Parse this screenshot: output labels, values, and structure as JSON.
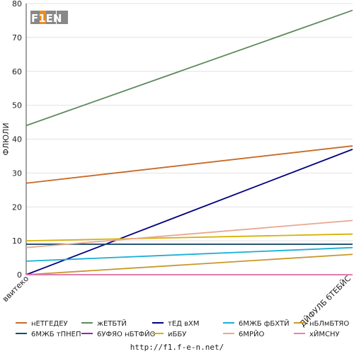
{
  "chart_data": {
    "type": "line",
    "title": "",
    "xlabel": "",
    "ylabel": "ФЛЮЛИ",
    "categories": [
      "ввитеко",
      "ДЙФУЛБ бТЕБЙС"
    ],
    "ylim": [
      0,
      80
    ],
    "yticks": [
      0,
      10,
      20,
      30,
      40,
      50,
      60,
      70,
      80
    ],
    "grid": true,
    "legend_position": "bottom",
    "series": [
      {
        "name": "нЕТГЕДЕУ",
        "color": "#c86a28",
        "values": [
          27,
          38
        ]
      },
      {
        "name": "жЕТБТЙ",
        "color": "#5d8a5d",
        "values": [
          44,
          78
        ]
      },
      {
        "name": "тЕД вХМ",
        "color": "#000080",
        "values": [
          0,
          37
        ]
      },
      {
        "name": "6МЖБ фБХТЙ",
        "color": "#1ab0d8",
        "values": [
          4,
          8
        ]
      },
      {
        "name": "нБЛмБТЯО",
        "color": "#c8982a",
        "values": [
          0,
          6
        ]
      },
      {
        "name": "6МЖБ тПНЕП",
        "color": "#1a4a6a",
        "values": [
          9,
          9
        ]
      },
      {
        "name": "6УФЯО нБТФЙО",
        "color": "#8a2aa8",
        "values": [
          0,
          0
        ]
      },
      {
        "name": "иББУ",
        "color": "#d8b000",
        "values": [
          10,
          12
        ]
      },
      {
        "name": "6МРЙО",
        "color": "#e8a890",
        "values": [
          8,
          16
        ]
      },
      {
        "name": "хЙМСНУ",
        "color": "#e880b0",
        "values": [
          0,
          0
        ]
      }
    ]
  },
  "logo_text": "F1EN",
  "footer_url": "http://f1.f-e-n.net/"
}
